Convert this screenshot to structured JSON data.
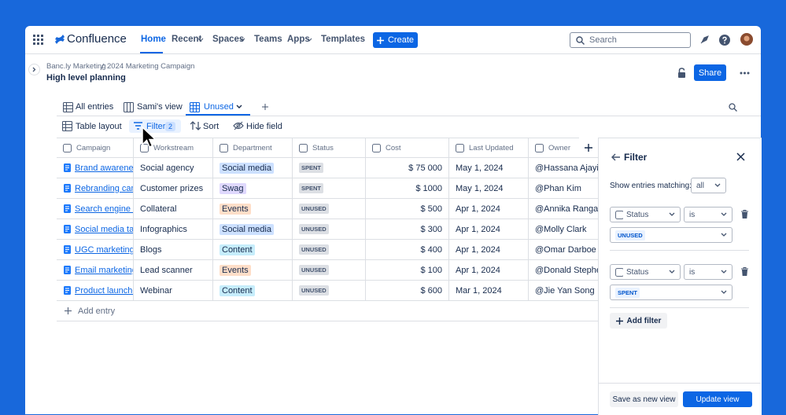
{
  "nav": {
    "product": "Confluence",
    "items": [
      "Home",
      "Recent",
      "Spaces",
      "Teams",
      "Apps",
      "Templates"
    ],
    "create": "Create",
    "search": "Search"
  },
  "breadcrumb": [
    "Banc.ly Marketing",
    "2024 Marketing Campaign"
  ],
  "page_title": "High level planning",
  "share": "Share",
  "tabs": [
    "All entries",
    "Sami's view",
    "Unused"
  ],
  "toolbar": {
    "table_layout": "Table layout",
    "filter": "Filter",
    "filter_count": 2,
    "sort": "Sort",
    "hide_field": "Hide field"
  },
  "table": {
    "columns": [
      "Campaign",
      "Workstream",
      "Department",
      "Status",
      "Cost",
      "Last Updated",
      "Owner"
    ],
    "rows": [
      [
        "Brand awareness",
        "Social agency",
        "Social media",
        "SPENT",
        "$ 75 000",
        "May 1, 2024",
        "@Hassana Ajayi"
      ],
      [
        "Rebranding campa",
        "Customer prizes",
        "Swag",
        "SPENT",
        "$ 1000",
        "May 1, 2024",
        "@Phan Kim"
      ],
      [
        "Search engine ma",
        "Collateral",
        "Events",
        "UNUSED",
        "$ 500",
        "Apr 1, 2024",
        "@Annika Rangara"
      ],
      [
        "Social media targe",
        "Infographics",
        "Social media",
        "UNUSED",
        "$ 300",
        "Apr 1, 2024",
        "@Molly Clark"
      ],
      [
        "UGC marketing",
        "Blogs",
        "Content",
        "UNUSED",
        "$ 400",
        "Apr 1, 2024",
        "@Omar Darboe"
      ],
      [
        "Email marketing",
        "Lead scanner",
        "Events",
        "UNUSED",
        "$ 100",
        "Apr 1, 2024",
        "@Donald Stepher"
      ],
      [
        "Product launches",
        "Webinar",
        "Content",
        "UNUSED",
        "$ 600",
        "Mar 1, 2024",
        "@Jie Yan Song"
      ]
    ],
    "add_entry": "Add entry"
  },
  "filter_panel": {
    "title": "Filter",
    "match_label": "Show entries matching:",
    "match_value": "all",
    "filters": [
      {
        "field": "Status",
        "operator": "is",
        "value": "UNUSED"
      },
      {
        "field": "Status",
        "operator": "is",
        "value": "SPENT"
      }
    ],
    "add_filter": "Add filter",
    "save_view": "Save as new view",
    "update_view": "Update view"
  }
}
